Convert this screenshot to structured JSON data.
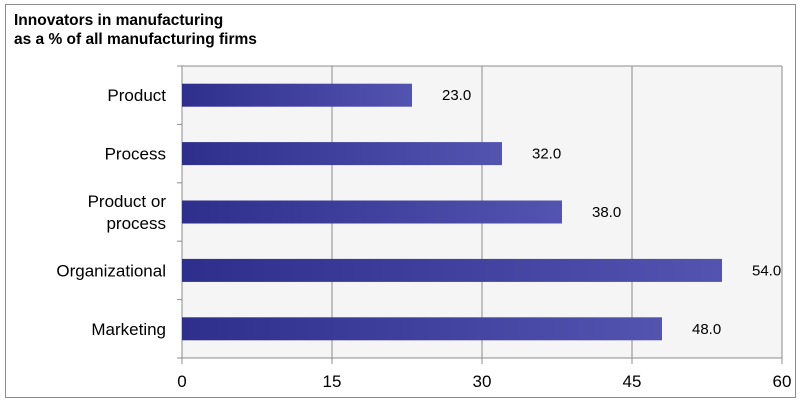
{
  "chart_data": {
    "type": "bar",
    "orientation": "horizontal",
    "title_lines": [
      "Innovators in manufacturing",
      "as a % of all manufacturing firms"
    ],
    "categories": [
      [
        "Product"
      ],
      [
        "Process"
      ],
      [
        "Product or",
        "process"
      ],
      [
        "Organizational"
      ],
      [
        "Marketing"
      ]
    ],
    "values": [
      23.0,
      32.0,
      38.0,
      54.0,
      48.0
    ],
    "data_labels": [
      "23.0",
      "32.0",
      "38.0",
      "54.0",
      "48.0"
    ],
    "xlim": [
      0,
      60
    ],
    "xticks": [
      0,
      15,
      30,
      45,
      60
    ],
    "xtick_labels": [
      "0",
      "15",
      "30",
      "45",
      "60"
    ],
    "grid": "vertical",
    "legend": "none",
    "bar_color_start": "#2e2e8c",
    "bar_color_end": "#5254b0",
    "plot_background": "#f5f5f5",
    "grid_color": "#8c8c8c"
  }
}
